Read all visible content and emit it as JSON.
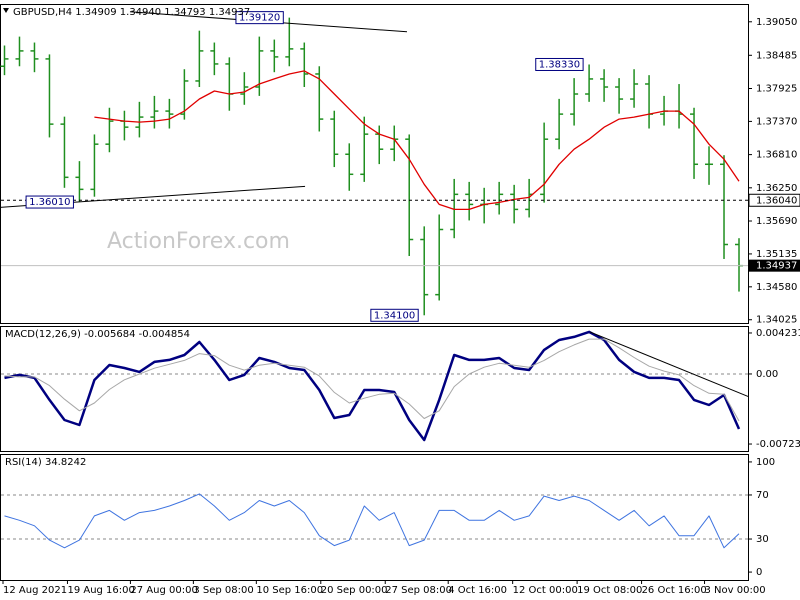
{
  "chart_data": [
    {
      "type": "ohlc",
      "title": "GBPUSD,H4 1.34909 1.34940 1.34793 1.34937",
      "watermark": "ActionForex.com",
      "color": "#1f8f1f",
      "xlim": [
        -0.3,
        49.6
      ],
      "ylim": [
        1.3397,
        1.3935
      ],
      "yticks": [
        {
          "value": 1.3905,
          "label": "1.39050"
        },
        1.38485,
        1.37925,
        {
          "value": 1.3737,
          "label": "1.37370"
        },
        {
          "value": 1.3681,
          "label": "1.36810"
        },
        {
          "value": 1.3625,
          "label": "1.36250"
        },
        {
          "value": 1.3569,
          "label": "1.35690"
        },
        1.35135,
        {
          "value": 1.3458,
          "label": "1.34580"
        },
        1.34025
      ],
      "open": [
        1.383,
        1.38424,
        1.38559,
        1.38424,
        1.37324,
        1.36427,
        1.36224,
        1.36986,
        1.37375,
        1.37273,
        1.37443,
        1.37544,
        1.37493,
        1.38052,
        1.38559,
        1.38339,
        1.37832,
        1.3795,
        1.38559,
        1.38458,
        1.38593,
        1.3817,
        1.37409,
        1.36816,
        1.36478,
        1.37155,
        1.36901,
        1.3707,
        1.35378,
        1.34448,
        1.35547,
        1.3614,
        1.3597,
        1.3597,
        1.3614,
        1.35886,
        1.3614,
        1.3707,
        1.37493,
        1.37832,
        1.38086,
        1.3795,
        1.37747,
        1.38001,
        1.37493,
        1.37544,
        1.37493,
        1.36647,
        1.36647,
        1.35294
      ],
      "high": [
        1.3865,
        1.388,
        1.387,
        1.385,
        1.3745,
        1.367,
        1.3715,
        1.376,
        1.3755,
        1.377,
        1.378,
        1.3775,
        1.3825,
        1.389,
        1.387,
        1.3845,
        1.382,
        1.388,
        1.3875,
        1.3912,
        1.387,
        1.383,
        1.3755,
        1.37,
        1.3745,
        1.373,
        1.373,
        1.3715,
        1.356,
        1.358,
        1.364,
        1.3635,
        1.3625,
        1.3635,
        1.363,
        1.364,
        1.3735,
        1.3775,
        1.381,
        1.3833,
        1.3825,
        1.381,
        1.3825,
        1.3815,
        1.378,
        1.38,
        1.376,
        1.3695,
        1.368,
        1.354
      ],
      "low": [
        1.3815,
        1.383,
        1.382,
        1.371,
        1.3625,
        1.3601,
        1.361,
        1.3685,
        1.3705,
        1.371,
        1.3725,
        1.3725,
        1.374,
        1.3795,
        1.3815,
        1.3755,
        1.3765,
        1.378,
        1.382,
        1.383,
        1.3795,
        1.372,
        1.366,
        1.362,
        1.3635,
        1.3665,
        1.367,
        1.351,
        1.341,
        1.3435,
        1.354,
        1.357,
        1.3565,
        1.358,
        1.3565,
        1.3575,
        1.36,
        1.369,
        1.373,
        1.377,
        1.377,
        1.375,
        1.376,
        1.3725,
        1.373,
        1.3725,
        1.364,
        1.363,
        1.3505,
        1.345
      ],
      "close": [
        1.38424,
        1.38559,
        1.38424,
        1.37324,
        1.36427,
        1.36224,
        1.36986,
        1.37375,
        1.37273,
        1.37443,
        1.37544,
        1.37493,
        1.38052,
        1.38559,
        1.38339,
        1.37832,
        1.3795,
        1.38559,
        1.38458,
        1.38593,
        1.3817,
        1.37409,
        1.36816,
        1.36478,
        1.37155,
        1.36901,
        1.3707,
        1.35378,
        1.34448,
        1.35547,
        1.3614,
        1.3597,
        1.3597,
        1.3614,
        1.35886,
        1.3614,
        1.3707,
        1.37493,
        1.37832,
        1.38086,
        1.3795,
        1.37747,
        1.38001,
        1.37493,
        1.37544,
        1.37493,
        1.36647,
        1.36647,
        1.35294,
        1.34937
      ],
      "series": [
        {
          "color": "#e00000",
          "values": [
            null,
            null,
            null,
            null,
            null,
            null,
            1.37443,
            1.37409,
            1.37375,
            1.37358,
            1.37375,
            1.37409,
            1.37544,
            1.37747,
            1.37883,
            1.37832,
            1.37866,
            1.38001,
            1.38086,
            1.3817,
            1.38221,
            1.38086,
            1.37832,
            1.37578,
            1.37324,
            1.37155,
            1.3707,
            1.36732,
            1.36309,
            1.3597,
            1.35886,
            1.35886,
            1.3597,
            1.36004,
            1.36055,
            1.36089,
            1.36309,
            1.36647,
            1.36901,
            1.3707,
            1.37273,
            1.37409,
            1.37443,
            1.37493,
            1.37544,
            1.37544,
            1.37324,
            1.36986,
            1.36732,
            1.3636
          ]
        }
      ],
      "trendlines": [
        {
          "x": [
            8.37,
            26.85
          ],
          "y": [
            1.39219,
            1.38881
          ]
        },
        {
          "x": [
            -0.3,
            20.05
          ],
          "y": [
            1.3592,
            1.36275
          ]
        }
      ],
      "annotations": [
        {
          "value": 1.3912,
          "label": "1.39120"
        },
        {
          "value": 1.3833,
          "label": "1.38330"
        },
        {
          "value": 1.3601,
          "label": "1.36010"
        },
        {
          "value": 1.341,
          "label": "1.34100"
        }
      ],
      "hline": {
        "value": 1.3604,
        "label": "1.36040"
      },
      "last_price": {
        "value": 1.34937,
        "label": "1.34937"
      }
    },
    {
      "type": "line",
      "title": "MACD(12,26,9) -0.005684 -0.004854",
      "xlim": [
        -0.3,
        49.6
      ],
      "ylim": [
        -0.00795,
        0.00495
      ],
      "yticks": [
        0.004231,
        {
          "value": 0,
          "label": "0.00"
        },
        -0.00723
      ],
      "levels": [
        0
      ],
      "series": [
        {
          "color": "#000080",
          "width": 2.5,
          "values": [
            -0.00041,
            -0.0001,
            -0.00041,
            -0.00268,
            -0.00475,
            -0.00527,
            -0.00062,
            0.00093,
            0.00062,
            0.00021,
            0.00124,
            0.00145,
            0.00196,
            0.0033,
            0.00145,
            -0.00062,
            -0.0001,
            0.00165,
            0.00124,
            0.00062,
            0.00041,
            -0.00165,
            -0.00454,
            -0.00423,
            -0.00165,
            -0.00165,
            -0.00186,
            -0.00475,
            -0.00681,
            -0.00268,
            0.00196,
            0.00145,
            0.00145,
            0.00165,
            0.00062,
            0.00041,
            0.00248,
            0.00351,
            0.00382,
            0.00434,
            0.00351,
            0.00145,
            0.00021,
            -0.00041,
            -0.00041,
            -0.00062,
            -0.00268,
            -0.0032,
            -0.00217,
            -0.00568
          ]
        },
        {
          "color": "#a8a8a8",
          "width": 1,
          "values": [
            -0.0002,
            -0.0003,
            -0.0003,
            -0.0012,
            -0.0026,
            -0.0038,
            -0.003,
            -0.0016,
            -0.0006,
            0,
            0.0006,
            0.001,
            0.0014,
            0.0021,
            0.0019,
            0.0009,
            0.0004,
            0.0009,
            0.0011,
            0.0009,
            0.0007,
            -0.0002,
            -0.0019,
            -0.003,
            -0.0025,
            -0.0021,
            -0.002,
            -0.0031,
            -0.0046,
            -0.0038,
            -0.0013,
            0,
            0.0007,
            0.0011,
            0.0009,
            0.0007,
            0.0014,
            0.0023,
            0.003,
            0.0036,
            0.0036,
            0.0027,
            0.0017,
            0.0008,
            0.0003,
            -0.0001,
            -0.0012,
            -0.002,
            -0.0021,
            -0.00485
          ]
        }
      ],
      "trendlines": [
        {
          "x": [
            39.06,
            49.6
          ],
          "y": [
            0.00434,
            -0.00232
          ]
        }
      ]
    },
    {
      "type": "line",
      "title": "RSI(14) 34.8242",
      "xlim": [
        -0.3,
        49.6
      ],
      "ylim": [
        -7.2,
        107.2
      ],
      "yticks": [
        100,
        70,
        30,
        0
      ],
      "levels": [
        70,
        30
      ],
      "series": [
        {
          "color": "#3f74e0",
          "width": 1,
          "values": [
            51,
            47,
            42,
            29,
            22,
            29,
            51,
            56,
            47,
            54,
            56,
            60,
            65,
            71,
            60,
            47,
            54,
            65,
            60,
            65,
            54,
            33,
            24,
            29,
            60,
            47,
            54,
            24,
            29,
            56,
            56,
            47,
            47,
            56,
            47,
            51,
            69,
            65,
            69,
            65,
            56,
            47,
            56,
            42,
            51,
            33,
            33,
            51,
            22,
            34.82
          ]
        }
      ],
      "xticks": [
        {
          "value": -0.1,
          "label": "12 Aug 2021"
        },
        {
          "value": 4.2,
          "label": "19 Aug 16:00"
        },
        {
          "value": 8.4,
          "label": "27 Aug 00:00"
        },
        {
          "value": 12.6,
          "label": "3 Sep 08:00"
        },
        {
          "value": 16.8,
          "label": "10 Sep 16:00"
        },
        {
          "value": 21.1,
          "label": "20 Sep 00:00"
        },
        {
          "value": 25.4,
          "label": "27 Sep 08:00"
        },
        {
          "value": 29.6,
          "label": "4 Oct 16:00"
        },
        {
          "value": 33.9,
          "label": "12 Oct 00:00"
        },
        {
          "value": 38.2,
          "label": "19 Oct 08:00"
        },
        {
          "value": 42.5,
          "label": "26 Oct 16:00"
        },
        {
          "value": 46.7,
          "label": "3 Nov 00:00"
        }
      ]
    }
  ]
}
